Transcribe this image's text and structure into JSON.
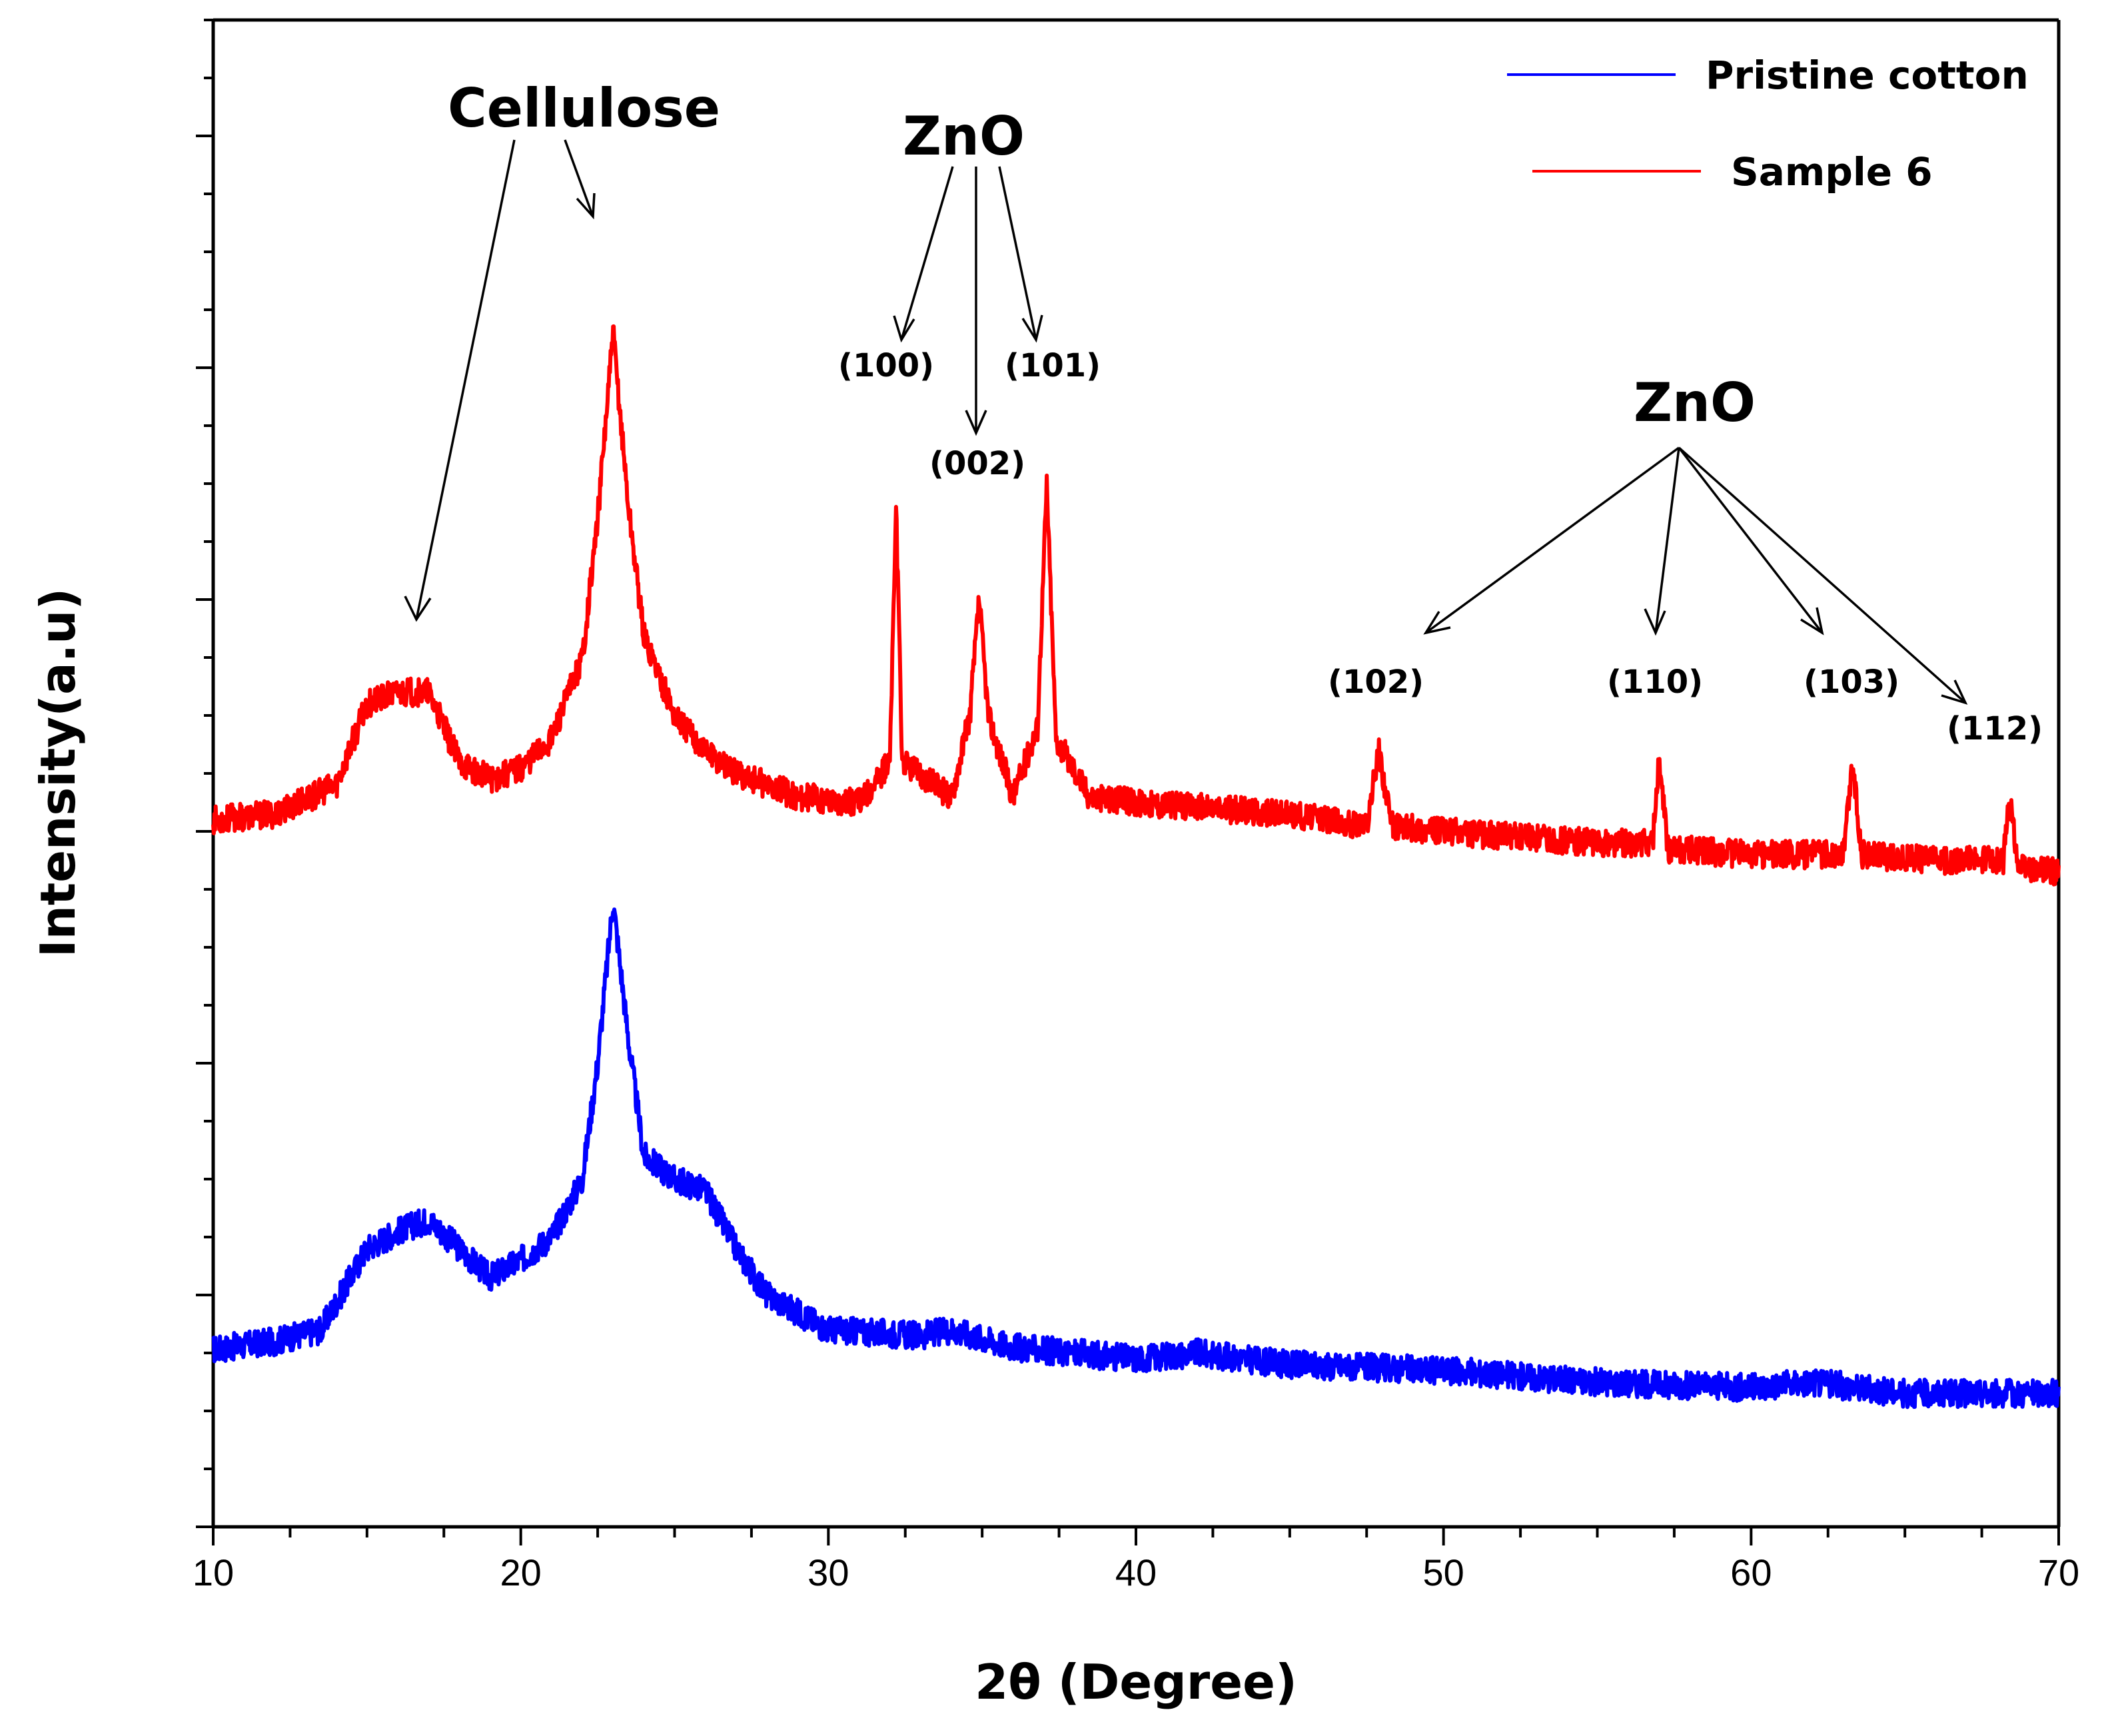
{
  "chart_data": {
    "type": "line",
    "title": "",
    "xlabel": "2θ (Degree)",
    "ylabel": "Intensity(a.u)",
    "xlim": [
      10,
      70
    ],
    "ylim": [
      0,
      130
    ],
    "x_ticks": [
      "10",
      "20",
      "30",
      "40",
      "50",
      "60",
      "70"
    ],
    "legend": {
      "location": "top-right",
      "entries": [
        "Pristine cotton",
        "Sample 6"
      ]
    },
    "series": [
      {
        "name": "Pristine cotton",
        "color": "#0000ff",
        "points": [
          [
            10,
            15.3
          ],
          [
            12,
            16
          ],
          [
            13.5,
            17
          ],
          [
            15,
            24
          ],
          [
            16,
            25.5
          ],
          [
            17,
            26.5
          ],
          [
            18,
            24
          ],
          [
            19,
            21.5
          ],
          [
            20,
            23
          ],
          [
            21,
            25
          ],
          [
            22,
            30
          ],
          [
            22.5,
            40
          ],
          [
            23,
            54
          ],
          [
            23.5,
            42
          ],
          [
            24,
            32
          ],
          [
            25,
            30
          ],
          [
            26,
            29
          ],
          [
            27,
            24
          ],
          [
            28,
            20
          ],
          [
            30,
            17
          ],
          [
            33,
            16.5
          ],
          [
            34,
            17
          ],
          [
            36,
            15.5
          ],
          [
            40,
            14.5
          ],
          [
            42,
            15
          ],
          [
            45,
            14
          ],
          [
            50,
            13.5
          ],
          [
            55,
            12.5
          ],
          [
            60,
            12
          ],
          [
            62,
            12.5
          ],
          [
            65,
            11.5
          ],
          [
            70,
            11.5
          ]
        ]
      },
      {
        "name": "Sample 6",
        "color": "#ff0000",
        "points": [
          [
            10,
            61
          ],
          [
            12,
            61.5
          ],
          [
            14,
            64
          ],
          [
            15,
            71
          ],
          [
            16,
            72
          ],
          [
            17,
            72
          ],
          [
            18,
            66
          ],
          [
            19,
            64.5
          ],
          [
            20,
            65.5
          ],
          [
            21,
            68
          ],
          [
            22,
            75
          ],
          [
            22.5,
            87
          ],
          [
            23,
            103
          ],
          [
            23.5,
            88
          ],
          [
            24,
            77
          ],
          [
            25,
            70
          ],
          [
            26,
            67
          ],
          [
            27,
            65
          ],
          [
            29,
            63
          ],
          [
            31,
            62.5
          ],
          [
            32,
            66
          ],
          [
            32.2,
            88
          ],
          [
            32.4,
            66
          ],
          [
            34,
            63
          ],
          [
            34.6,
            70
          ],
          [
            34.9,
            80
          ],
          [
            35.2,
            70
          ],
          [
            36,
            63
          ],
          [
            36.8,
            69
          ],
          [
            37.1,
            90
          ],
          [
            37.4,
            68
          ],
          [
            38.5,
            63
          ],
          [
            40,
            62.5
          ],
          [
            45,
            61.5
          ],
          [
            47.5,
            60.5
          ],
          [
            47.9,
            67
          ],
          [
            48.3,
            60.5
          ],
          [
            50,
            60
          ],
          [
            55,
            59
          ],
          [
            56.8,
            59
          ],
          [
            57,
            66
          ],
          [
            57.3,
            58.5
          ],
          [
            60,
            58
          ],
          [
            63,
            58
          ],
          [
            63.3,
            66
          ],
          [
            63.6,
            58
          ],
          [
            66,
            57.5
          ],
          [
            68.2,
            57.5
          ],
          [
            68.4,
            63
          ],
          [
            68.7,
            57
          ],
          [
            70,
            56.5
          ]
        ]
      }
    ],
    "annotations": {
      "cellulose": "Cellulose",
      "zno_1": "ZnO",
      "zno_2": "ZnO",
      "hkl_100": "(100)",
      "hkl_002": "(002)",
      "hkl_101": "(101)",
      "hkl_102": "(102)",
      "hkl_110": "(110)",
      "hkl_103": "(103)",
      "hkl_112": "(112)"
    }
  }
}
